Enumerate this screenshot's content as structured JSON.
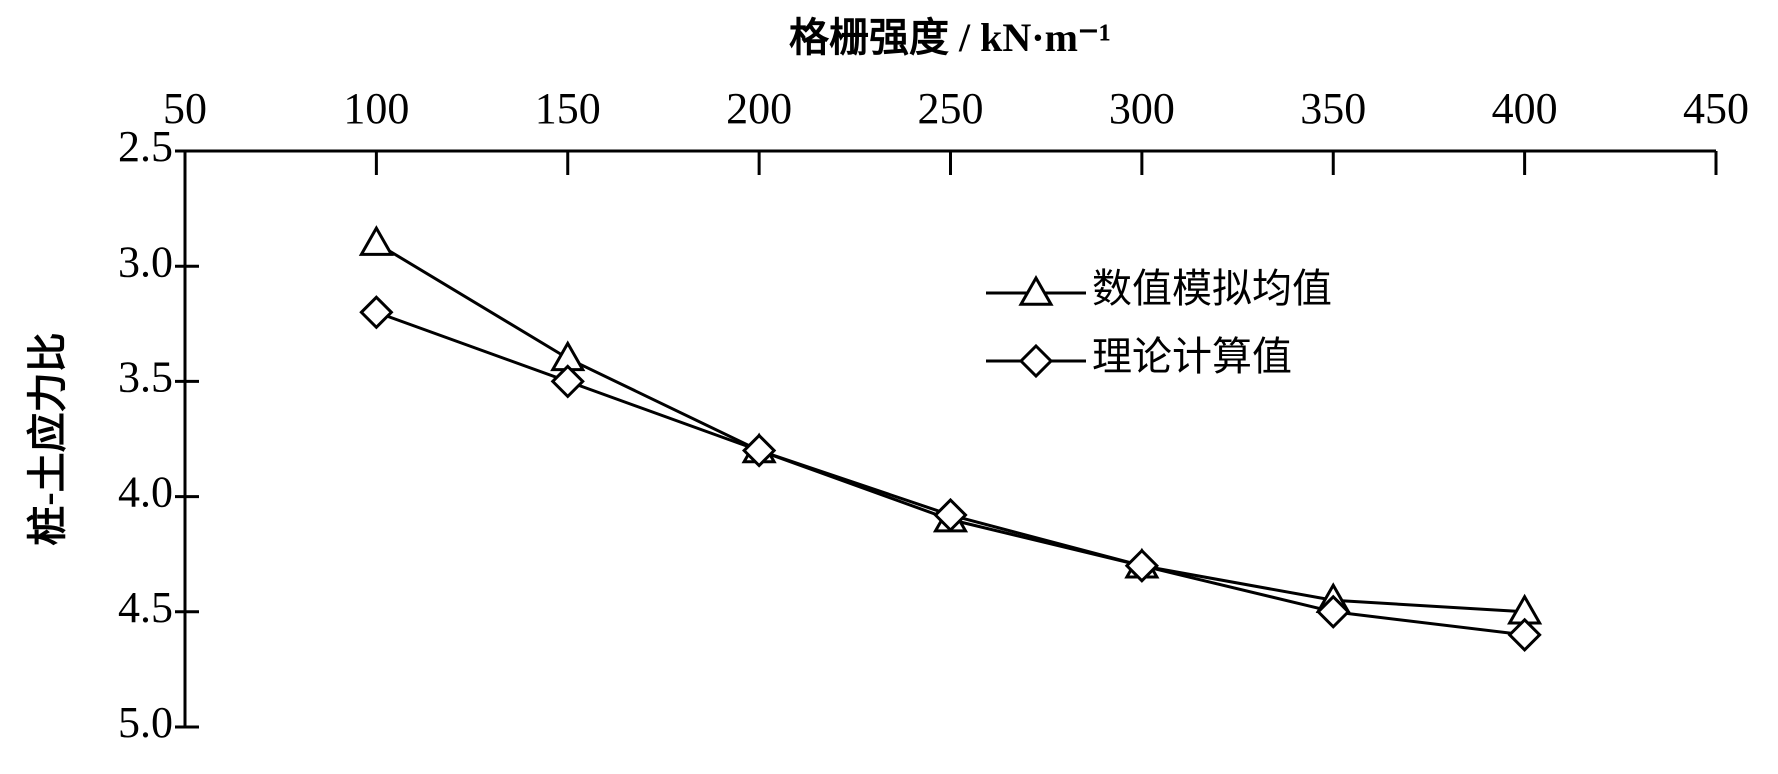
{
  "chart_data": {
    "type": "line",
    "x_title": "格栅强度 / kN·m⁻¹",
    "y_title": "桩-土应力比",
    "x_axis_position": "top",
    "y_reversed": true,
    "legend_position": "center right",
    "x": [
      100,
      150,
      200,
      250,
      300,
      350,
      400
    ],
    "series": [
      {
        "name": "数值模拟均值",
        "color": "#000000",
        "marker": "triangle",
        "values": [
          2.9,
          3.4,
          3.8,
          4.1,
          4.3,
          4.45,
          4.5
        ]
      },
      {
        "name": "理论计算值",
        "color": "#000000",
        "marker": "diamond",
        "values": [
          3.2,
          3.5,
          3.8,
          4.08,
          4.3,
          4.5,
          4.6
        ]
      }
    ],
    "xlim": [
      50,
      450
    ],
    "xticks": [
      50,
      100,
      150,
      200,
      250,
      300,
      350,
      400,
      450
    ],
    "ylim": [
      2.5,
      5.0
    ],
    "yticks": [
      2.5,
      {
        "value": 3,
        "label": "3.0"
      },
      3.5,
      {
        "value": 4,
        "label": "4.0"
      },
      4.5,
      {
        "value": 5,
        "label": "5.0"
      }
    ]
  }
}
